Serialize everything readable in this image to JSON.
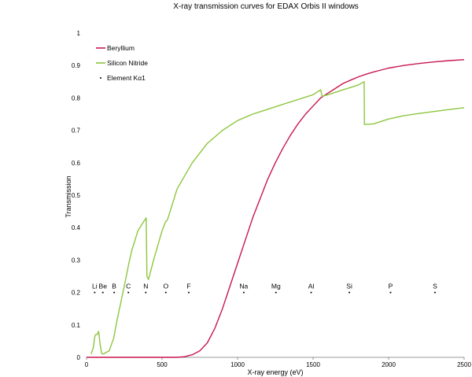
{
  "chart_data": {
    "type": "line",
    "title": "X-ray transmission curves for EDAX Orbis II windows",
    "xlabel": "X-ray energy (eV)",
    "ylabel": "Transmission",
    "xlim": [
      0,
      2500
    ],
    "ylim": [
      0,
      1
    ],
    "x_ticks": [
      "0",
      "500",
      "1000",
      "1500",
      "2000",
      "2500"
    ],
    "y_ticks": [
      "0",
      "0.1",
      "0.2",
      "0.3",
      "0.4",
      "0.5",
      "0.6",
      "0.7",
      "0.8",
      "0.9",
      "1"
    ],
    "grid": false,
    "legend_position": "top-left",
    "series": [
      {
        "name": "Beryllium",
        "color": "#c8174f",
        "x": [
          0,
          600,
          650,
          700,
          750,
          800,
          850,
          900,
          950,
          1000,
          1050,
          1100,
          1150,
          1200,
          1250,
          1300,
          1350,
          1400,
          1450,
          1500,
          1550,
          1600,
          1650,
          1700,
          1750,
          1800,
          1850,
          1900,
          1950,
          2000,
          2100,
          2200,
          2300,
          2400,
          2500
        ],
        "y": [
          0,
          0,
          0.002,
          0.008,
          0.02,
          0.045,
          0.09,
          0.15,
          0.22,
          0.29,
          0.36,
          0.43,
          0.49,
          0.55,
          0.6,
          0.645,
          0.685,
          0.72,
          0.75,
          0.775,
          0.8,
          0.815,
          0.83,
          0.845,
          0.855,
          0.865,
          0.873,
          0.88,
          0.886,
          0.892,
          0.9,
          0.906,
          0.911,
          0.915,
          0.918
        ]
      },
      {
        "name": "Silicon Nitride",
        "color": "#8dc63f",
        "x": [
          30,
          45,
          55,
          60,
          70,
          80,
          90,
          100,
          110,
          130,
          150,
          180,
          200,
          250,
          280,
          300,
          340,
          380,
          395,
          400,
          410,
          450,
          500,
          525,
          530,
          540,
          600,
          700,
          800,
          900,
          1000,
          1100,
          1200,
          1300,
          1400,
          1500,
          1550,
          1560,
          1600,
          1700,
          1800,
          1838,
          1840,
          1900,
          2000,
          2100,
          2200,
          2300,
          2400,
          2500
        ],
        "y": [
          0.01,
          0.03,
          0.065,
          0.07,
          0.07,
          0.08,
          0.04,
          0.012,
          0.01,
          0.015,
          0.02,
          0.06,
          0.11,
          0.22,
          0.29,
          0.33,
          0.39,
          0.42,
          0.43,
          0.25,
          0.24,
          0.31,
          0.39,
          0.42,
          0.42,
          0.43,
          0.52,
          0.6,
          0.66,
          0.7,
          0.73,
          0.75,
          0.765,
          0.78,
          0.795,
          0.81,
          0.825,
          0.805,
          0.81,
          0.825,
          0.84,
          0.85,
          0.718,
          0.72,
          0.735,
          0.745,
          0.752,
          0.758,
          0.764,
          0.77
        ]
      },
      {
        "name": "Element Kα1",
        "color": "#000000",
        "type": "scatter",
        "y_value": 0.2,
        "points": [
          {
            "label": "Li",
            "x": 54
          },
          {
            "label": "Be",
            "x": 108
          },
          {
            "label": "B",
            "x": 183
          },
          {
            "label": "C",
            "x": 277
          },
          {
            "label": "N",
            "x": 392
          },
          {
            "label": "O",
            "x": 525
          },
          {
            "label": "F",
            "x": 677
          },
          {
            "label": "Na",
            "x": 1041
          },
          {
            "label": "Mg",
            "x": 1254
          },
          {
            "label": "Al",
            "x": 1487
          },
          {
            "label": "Si",
            "x": 1740
          },
          {
            "label": "P",
            "x": 2013
          },
          {
            "label": "S",
            "x": 2307
          }
        ]
      }
    ]
  }
}
